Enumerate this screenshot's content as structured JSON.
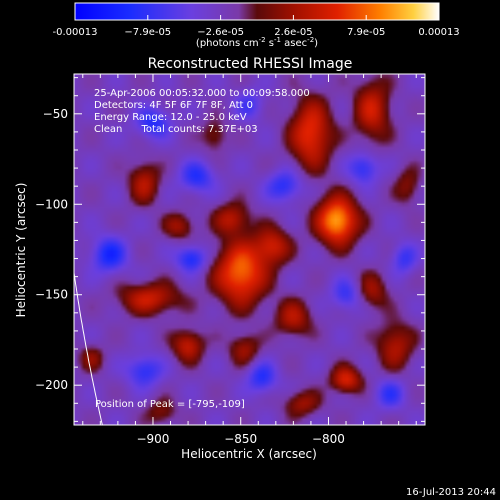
{
  "chart_data": {
    "type": "heatmap",
    "title": "Reconstructed RHESSI Image",
    "xlabel": "Heliocentric X (arcsec)",
    "ylabel": "Heliocentric Y (arcsec)",
    "xlim": [
      -945,
      -745
    ],
    "ylim": [
      -222,
      -28
    ],
    "x_ticks": [
      -900,
      -850,
      -800
    ],
    "y_ticks": [
      -50,
      -100,
      -150,
      -200
    ],
    "colorbar": {
      "range": [
        -0.00013,
        0.00013
      ],
      "tick_labels": [
        "-0.00013",
        "−7.9e-05",
        "−2.6e-05",
        "2.6e-05",
        "7.9e-05",
        "0.00013"
      ],
      "units_prefix": "(photons cm",
      "units_exp1": "-2",
      "units_mid": " s",
      "units_exp2": "-1",
      "units_mid2": " asec",
      "units_exp3": "-2",
      "units_suffix": ")"
    },
    "annotations": [
      "25-Apr-2006 00:05:32.000 to 00:09:58.000",
      "Detectors: 4F 5F 6F 7F 8F, Att 0",
      "Energy Range: 12.0 - 25.0 keV",
      "Clean      Total counts: 7.37E+03"
    ],
    "peak_label": "Position of Peak = [-795,-109]",
    "peak": [
      -795,
      -109
    ],
    "sources": [
      {
        "x": -795,
        "y": -109,
        "value": 0.00013,
        "sx": 8,
        "sy": 9
      },
      {
        "x": -850,
        "y": -138,
        "value": 0.00011,
        "sx": 10,
        "sy": 12
      },
      {
        "x": -832,
        "y": -123,
        "value": 7e-05,
        "sx": 7,
        "sy": 7
      },
      {
        "x": -810,
        "y": -61,
        "value": 9e-05,
        "sx": 8,
        "sy": 13
      },
      {
        "x": -775,
        "y": -48,
        "value": 7e-05,
        "sx": 7,
        "sy": 12
      },
      {
        "x": -905,
        "y": -88,
        "value": 6e-05,
        "sx": 6,
        "sy": 8
      },
      {
        "x": -855,
        "y": -108,
        "value": 6e-05,
        "sx": 7,
        "sy": 6
      },
      {
        "x": -885,
        "y": -112,
        "value": 5e-05,
        "sx": 6,
        "sy": 5
      },
      {
        "x": -902,
        "y": -152,
        "value": 7e-05,
        "sx": 12,
        "sy": 6
      },
      {
        "x": -880,
        "y": -178,
        "value": 7e-05,
        "sx": 6,
        "sy": 6
      },
      {
        "x": -848,
        "y": -180,
        "value": 5e-05,
        "sx": 6,
        "sy": 6
      },
      {
        "x": -820,
        "y": -163,
        "value": 6e-05,
        "sx": 7,
        "sy": 7
      },
      {
        "x": -762,
        "y": -178,
        "value": 6e-05,
        "sx": 7,
        "sy": 9
      },
      {
        "x": -790,
        "y": -197,
        "value": 8e-05,
        "sx": 6,
        "sy": 5
      },
      {
        "x": -815,
        "y": -210,
        "value": 5e-05,
        "sx": 7,
        "sy": 5
      },
      {
        "x": -895,
        "y": -215,
        "value": 4e-05,
        "sx": 6,
        "sy": 5
      },
      {
        "x": -935,
        "y": -185,
        "value": 4e-05,
        "sx": 5,
        "sy": 5
      },
      {
        "x": -775,
        "y": -148,
        "value": 5e-05,
        "sx": 6,
        "sy": 7
      },
      {
        "x": -755,
        "y": -90,
        "value": 4e-05,
        "sx": 5,
        "sy": 7
      },
      {
        "x": -865,
        "y": -62,
        "value": 4e-05,
        "sx": 5,
        "sy": 6
      },
      {
        "x": -875,
        "y": -85,
        "value": -6e-05,
        "sx": 7,
        "sy": 6
      },
      {
        "x": -900,
        "y": -55,
        "value": -6e-05,
        "sx": 7,
        "sy": 6
      },
      {
        "x": -878,
        "y": -130,
        "value": -7e-05,
        "sx": 6,
        "sy": 5
      },
      {
        "x": -925,
        "y": -128,
        "value": -7e-05,
        "sx": 7,
        "sy": 7
      },
      {
        "x": -825,
        "y": -90,
        "value": -6e-05,
        "sx": 7,
        "sy": 6
      },
      {
        "x": -780,
        "y": -80,
        "value": -6e-05,
        "sx": 6,
        "sy": 6
      },
      {
        "x": -790,
        "y": -150,
        "value": -5e-05,
        "sx": 6,
        "sy": 6
      },
      {
        "x": -838,
        "y": -196,
        "value": -6e-05,
        "sx": 6,
        "sy": 6
      },
      {
        "x": -905,
        "y": -192,
        "value": -6e-05,
        "sx": 7,
        "sy": 6
      },
      {
        "x": -765,
        "y": -205,
        "value": -5e-05,
        "sx": 6,
        "sy": 6
      },
      {
        "x": -757,
        "y": -130,
        "value": -5e-05,
        "sx": 5,
        "sy": 6
      },
      {
        "x": -845,
        "y": -45,
        "value": -4e-05,
        "sx": 6,
        "sy": 6
      }
    ]
  },
  "footer": {
    "timestamp": "16-Jul-2013 20:44"
  }
}
